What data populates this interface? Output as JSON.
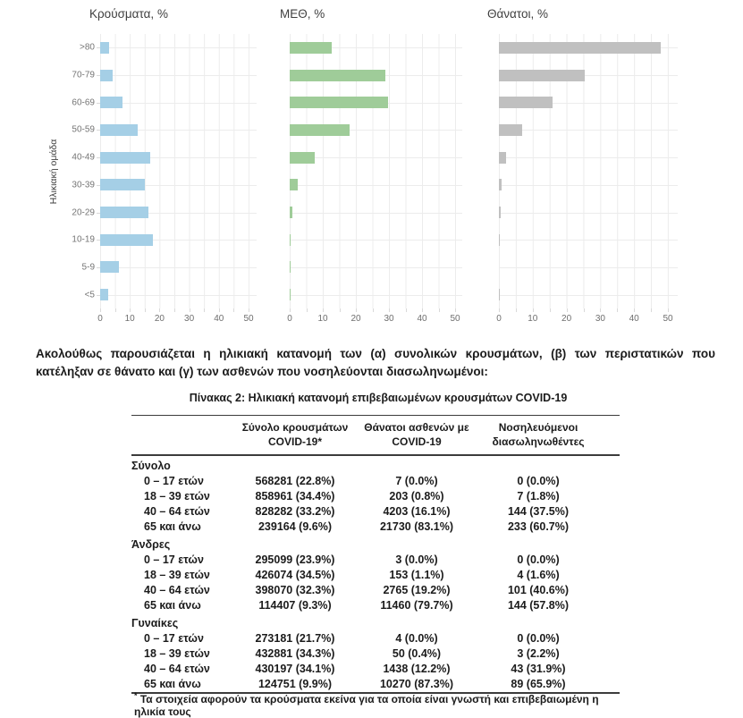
{
  "intro": "Ακολούθως παρουσιάζεται η ηλικιακή κατανομή των (α) συνολικών κρουσμάτων, (β) των περιστατικών που κατέληξαν σε θάνατο και (γ) των ασθενών που νοσηλεύονται διασωληνωμένοι:",
  "chart_data": [
    {
      "type": "bar",
      "orientation": "horizontal",
      "title": "Κρούσματα, %",
      "ylabel": "Ηλικιακή ομάδα",
      "categories": [
        ">80",
        "70-79",
        "60-69",
        "50-59",
        "40-49",
        "30-39",
        "20-29",
        "10-19",
        "5-9",
        "<5"
      ],
      "values": [
        3,
        4.2,
        7.4,
        12.6,
        16.9,
        15.1,
        16.2,
        17.9,
        6.3,
        2.6
      ],
      "xlim": [
        0,
        52
      ],
      "x_ticks": [
        0,
        10,
        20,
        30,
        40,
        50
      ],
      "grid": true,
      "bar_color": "#a5cfe6"
    },
    {
      "type": "bar",
      "orientation": "horizontal",
      "title": "ΜΕΘ, %",
      "ylabel": "Ηλικιακή ομάδα",
      "categories": [
        ">80",
        "70-79",
        "60-69",
        "50-59",
        "40-49",
        "30-39",
        "20-29",
        "10-19",
        "5-9",
        "<5"
      ],
      "values": [
        12.7,
        29,
        29.8,
        18.1,
        7.5,
        2.4,
        0.8,
        0.3,
        0.2,
        0.2
      ],
      "xlim": [
        0,
        52
      ],
      "x_ticks": [
        0,
        10,
        20,
        30,
        40,
        50
      ],
      "grid": true,
      "bar_color": "#9fcc99"
    },
    {
      "type": "bar",
      "orientation": "horizontal",
      "title": "Θάνατοι, %",
      "ylabel": "Ηλικιακή ομάδα",
      "categories": [
        ">80",
        "70-79",
        "60-69",
        "50-59",
        "40-49",
        "30-39",
        "20-29",
        "10-19",
        "5-9",
        "<5"
      ],
      "values": [
        47.9,
        25.4,
        15.9,
        6.9,
        2.1,
        0.8,
        0.4,
        0.2,
        0,
        0.15
      ],
      "xlim": [
        0,
        52
      ],
      "x_ticks": [
        0,
        10,
        20,
        30,
        40,
        50
      ],
      "grid": true,
      "bar_color": "#c0c0c0"
    }
  ],
  "table": {
    "caption": "Πίνακας 2: Ηλικιακή κατανομή επιβεβαιωμένων κρουσμάτων COVID-19",
    "columns": [
      "",
      "Σύνολο κρουσμάτων COVID-19*",
      "Θάνατοι ασθενών με COVID-19",
      "Νοσηλευόμενοι διασωληνωθέντες"
    ],
    "sections": [
      {
        "label": "Σύνολο",
        "rows": [
          [
            "0 – 17 ετών",
            "568281 (22.8%)",
            "7 (0.0%)",
            "0 (0.0%)"
          ],
          [
            "18 – 39 ετών",
            "858961 (34.4%)",
            "203 (0.8%)",
            "7 (1.8%)"
          ],
          [
            "40 – 64 ετών",
            "828282 (33.2%)",
            "4203 (16.1%)",
            "144 (37.5%)"
          ],
          [
            "65 και άνω",
            "239164 (9.6%)",
            "21730 (83.1%)",
            "233 (60.7%)"
          ]
        ]
      },
      {
        "label": "Άνδρες",
        "rows": [
          [
            "0 – 17 ετών",
            "295099 (23.9%)",
            "3 (0.0%)",
            "0 (0.0%)"
          ],
          [
            "18 – 39 ετών",
            "426074 (34.5%)",
            "153 (1.1%)",
            "4 (1.6%)"
          ],
          [
            "40 – 64 ετών",
            "398070 (32.3%)",
            "2765 (19.2%)",
            "101 (40.6%)"
          ],
          [
            "65 και άνω",
            "114407 (9.3%)",
            "11460 (79.7%)",
            "144 (57.8%)"
          ]
        ]
      },
      {
        "label": "Γυναίκες",
        "rows": [
          [
            "0 – 17 ετών",
            "273181 (21.7%)",
            "4 (0.0%)",
            "0 (0.0%)"
          ],
          [
            "18 – 39 ετών",
            "432881 (34.3%)",
            "50 (0.4%)",
            "3 (2.2%)"
          ],
          [
            "40 – 64 ετών",
            "430197 (34.1%)",
            "1438 (12.2%)",
            "43 (31.9%)"
          ],
          [
            "65 και άνω",
            "124751 (9.9%)",
            "10270 (87.3%)",
            "89 (65.9%)"
          ]
        ]
      }
    ],
    "footnote_marker": "*",
    "footnote": "Τα στοιχεία αφορούν τα κρούσματα εκείνα για τα οποία είναι γνωστή και επιβεβαιωμένη η ηλικία τους"
  }
}
